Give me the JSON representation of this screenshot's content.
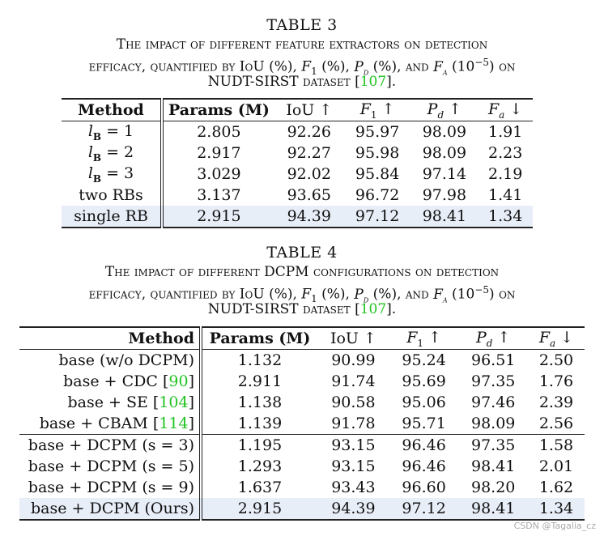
{
  "table3": {
    "label": "TABLE 3",
    "caption_lines": [
      "The impact of different feature extractors on detection",
      "efficacy, quantified by IoU (%), F1 (%), Pd (%), and Fa (10−5) on",
      "NUDT-SIRST dataset [107]."
    ],
    "ref": "107",
    "headers": [
      "Method",
      "Params (M)",
      "IoU ↑",
      "F1 ↑",
      "Pd ↑",
      "Fa ↓"
    ],
    "rows": [
      [
        "lB = 1",
        "2.805",
        "92.26",
        "95.97",
        "98.09",
        "1.91"
      ],
      [
        "lB = 2",
        "2.917",
        "92.27",
        "95.98",
        "98.09",
        "2.23"
      ],
      [
        "lB = 3",
        "3.029",
        "92.02",
        "95.84",
        "97.14",
        "2.19"
      ],
      [
        "two RBs",
        "3.137",
        "93.65",
        "96.72",
        "97.98",
        "1.41"
      ],
      [
        "single RB",
        "2.915",
        "94.39",
        "97.12",
        "98.41",
        "1.34"
      ]
    ]
  },
  "table4": {
    "label": "TABLE 4",
    "caption_lines": [
      "The impact of different DCPM configurations on detection",
      "efficacy, quantified by IoU (%), F1 (%), Pd (%), and Fa (10−5) on",
      "NUDT-SIRST dataset [107]."
    ],
    "ref": "107",
    "headers": [
      "Method",
      "Params (M)",
      "IoU ↑",
      "F1 ↑",
      "Pd ↑",
      "Fa ↓"
    ],
    "rows": [
      [
        "base (w/o DCPM)",
        "1.132",
        "90.99",
        "95.24",
        "96.51",
        "2.50"
      ],
      [
        "base + CDC [90]",
        "2.911",
        "91.74",
        "95.69",
        "97.35",
        "1.76"
      ],
      [
        "base + SE [104]",
        "1.138",
        "90.58",
        "95.06",
        "97.46",
        "2.39"
      ],
      [
        "base + CBAM [114]",
        "1.139",
        "91.78",
        "95.71",
        "98.09",
        "2.56"
      ],
      [
        "base + DCPM (s = 3)",
        "1.195",
        "93.15",
        "96.46",
        "97.35",
        "1.58"
      ],
      [
        "base + DCPM (s = 5)",
        "1.293",
        "93.15",
        "96.46",
        "98.41",
        "2.01"
      ],
      [
        "base + DCPM (s = 9)",
        "1.637",
        "93.43",
        "96.60",
        "98.20",
        "1.62"
      ],
      [
        "base + DCPM (Ours)",
        "2.915",
        "94.39",
        "97.12",
        "98.41",
        "1.34"
      ]
    ]
  },
  "watermark": "CSDN @Tagalia_cz",
  "colors": {
    "reference": "#22c322",
    "highlight_row": "#e8eef8"
  }
}
